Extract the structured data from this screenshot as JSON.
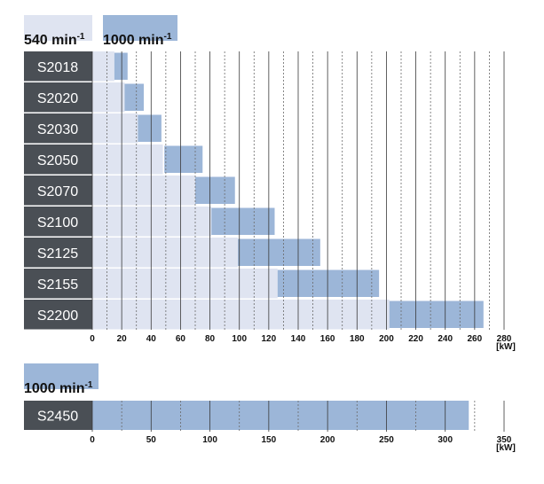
{
  "colors": {
    "model_box": "#4a4f55",
    "range_540": "#dfe4f1",
    "range_1000": "#9cb6d8",
    "grid_solid": "#3a3a3a",
    "grid_dashed": "#6a6a6a"
  },
  "chart_data": [
    {
      "type": "bar",
      "subtype": "floating-range",
      "legend": [
        {
          "label": "540 min",
          "sup": "-1",
          "color": "#dfe4f1"
        },
        {
          "label": "1000 min",
          "sup": "-1",
          "color": "#9cb6d8"
        }
      ],
      "categories": [
        "S2018",
        "S2020",
        "S2030",
        "S2050",
        "S2070",
        "S2100",
        "S2125",
        "S2155",
        "S2200"
      ],
      "series": [
        {
          "name": "540 min-1",
          "ranges": [
            [
              0,
              15
            ],
            [
              0,
              22
            ],
            [
              0,
              31
            ],
            [
              0,
              48
            ],
            [
              0,
              70
            ],
            [
              0,
              81
            ],
            [
              0,
              99
            ],
            [
              0,
              126
            ],
            [
              0,
              202
            ]
          ]
        },
        {
          "name": "1000 min-1",
          "ranges": [
            [
              15,
              24
            ],
            [
              22,
              35
            ],
            [
              31,
              47
            ],
            [
              49,
              75
            ],
            [
              70,
              97
            ],
            [
              81,
              124
            ],
            [
              99,
              155
            ],
            [
              126,
              195
            ],
            [
              202,
              266
            ]
          ]
        }
      ],
      "x_ticks": [
        0,
        20,
        40,
        60,
        80,
        100,
        120,
        140,
        160,
        180,
        200,
        220,
        240,
        260,
        280
      ],
      "x_unit": "[kW]",
      "xlim": [
        0,
        280
      ],
      "grid": "vertical, solid at labeled ticks, dashed at midpoints"
    },
    {
      "type": "bar",
      "subtype": "floating-range",
      "legend": [
        {
          "label": "1000 min",
          "sup": "-1",
          "color": "#9cb6d8"
        }
      ],
      "categories": [
        "S2450"
      ],
      "series": [
        {
          "name": "1000 min-1",
          "ranges": [
            [
              0,
              320
            ]
          ]
        }
      ],
      "x_ticks": [
        0,
        50,
        100,
        150,
        200,
        250,
        300,
        350
      ],
      "x_unit": "[kW]",
      "xlim": [
        0,
        350
      ],
      "grid": "vertical, solid at labeled ticks, dashed at midpoints"
    }
  ]
}
